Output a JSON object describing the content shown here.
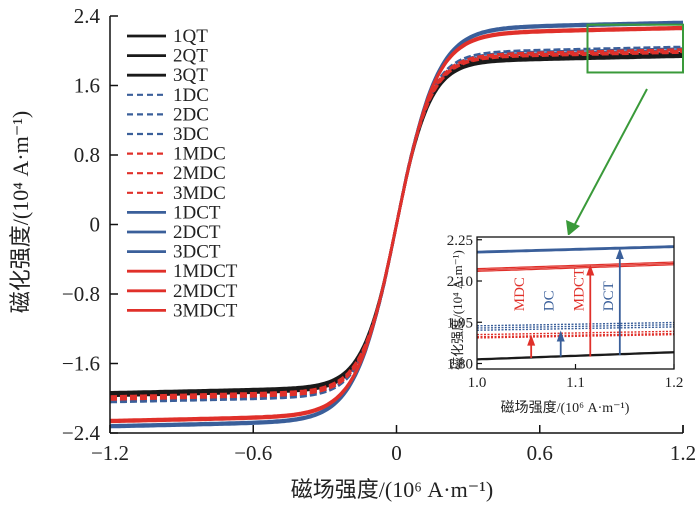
{
  "chart_data": {
    "type": "line",
    "title": "",
    "xlabel": "磁场强度/(10⁶ A·m⁻¹)",
    "ylabel": "磁化强度/(10⁴ A·m⁻¹)",
    "xlim": [
      -1.2,
      1.2
    ],
    "ylim": [
      -2.4,
      2.4
    ],
    "xticks": [
      "−1.2",
      "−0.6",
      "0",
      "0.6",
      "1.2"
    ],
    "xtick_values": [
      -1.2,
      -0.6,
      0,
      0.6,
      1.2
    ],
    "yticks": [
      "2.4",
      "1.6",
      "0.8",
      "0",
      "−0.8",
      "−1.6",
      "−2.4"
    ],
    "ytick_values": [
      2.4,
      1.6,
      0.8,
      0,
      -0.8,
      -1.6,
      -2.4
    ],
    "grid": false,
    "legend_position": "top-left",
    "series": [
      {
        "name": "1QT",
        "color": "#1a1a1a",
        "style": "solid",
        "ms": 1.86,
        "k": 7.0
      },
      {
        "name": "2QT",
        "color": "#1a1a1a",
        "style": "solid",
        "ms": 1.88,
        "k": 7.1
      },
      {
        "name": "3QT",
        "color": "#1a1a1a",
        "style": "solid",
        "ms": 1.9,
        "k": 7.2
      },
      {
        "name": "1DC",
        "color": "#3a5f9a",
        "style": "dashed",
        "ms": 1.93,
        "k": 6.9
      },
      {
        "name": "2DC",
        "color": "#3a5f9a",
        "style": "dashed",
        "ms": 1.95,
        "k": 6.9
      },
      {
        "name": "3DC",
        "color": "#3a5f9a",
        "style": "dashed",
        "ms": 1.97,
        "k": 6.9
      },
      {
        "name": "1MDC",
        "color": "#e0302a",
        "style": "dashed",
        "ms": 1.91,
        "k": 7.0
      },
      {
        "name": "2MDC",
        "color": "#e0302a",
        "style": "dashed",
        "ms": 1.92,
        "k": 7.0
      },
      {
        "name": "3MDC",
        "color": "#e0302a",
        "style": "dashed",
        "ms": 1.94,
        "k": 7.0
      },
      {
        "name": "1DCT",
        "color": "#3a5f9a",
        "style": "solid",
        "ms": 2.24,
        "k": 5.9
      },
      {
        "name": "2DCT",
        "color": "#3a5f9a",
        "style": "solid",
        "ms": 2.25,
        "k": 5.9
      },
      {
        "name": "3DCT",
        "color": "#3a5f9a",
        "style": "solid",
        "ms": 2.26,
        "k": 5.9
      },
      {
        "name": "1MDCT",
        "color": "#e0302a",
        "style": "solid",
        "ms": 2.18,
        "k": 6.0
      },
      {
        "name": "2MDCT",
        "color": "#e0302a",
        "style": "solid",
        "ms": 2.19,
        "k": 6.0
      },
      {
        "name": "3MDCT",
        "color": "#e0302a",
        "style": "solid",
        "ms": 2.2,
        "k": 6.0
      }
    ],
    "zoom_region": {
      "x": [
        0.8,
        1.2
      ],
      "y": [
        1.75,
        2.3
      ],
      "color": "#3a9a3a"
    },
    "inset": {
      "xlabel": "磁场强度/(10⁶ A·m⁻¹)",
      "ylabel": "磁化强度/(10⁴ A·m⁻¹)",
      "xlim": [
        1.0,
        1.2
      ],
      "ylim": [
        1.78,
        2.26
      ],
      "xticks": [
        "1.0",
        "1.1",
        "1.2"
      ],
      "xtick_values": [
        1.0,
        1.1,
        1.2
      ],
      "yticks": [
        "2.25",
        "2.10",
        "1.95",
        "1.80"
      ],
      "ytick_values": [
        2.25,
        2.1,
        1.95,
        1.8
      ],
      "annotations": [
        {
          "label": "MDC",
          "color": "#e0302a",
          "x": 1.055,
          "from": 1.82,
          "to": 1.905
        },
        {
          "label": "DC",
          "color": "#3a5f9a",
          "x": 1.085,
          "from": 1.825,
          "to": 1.92
        },
        {
          "label": "MDCT",
          "color": "#e0302a",
          "x": 1.115,
          "from": 1.825,
          "to": 2.16
        },
        {
          "label": "DCT",
          "color": "#3a5f9a",
          "x": 1.145,
          "from": 1.83,
          "to": 2.22
        }
      ]
    }
  }
}
